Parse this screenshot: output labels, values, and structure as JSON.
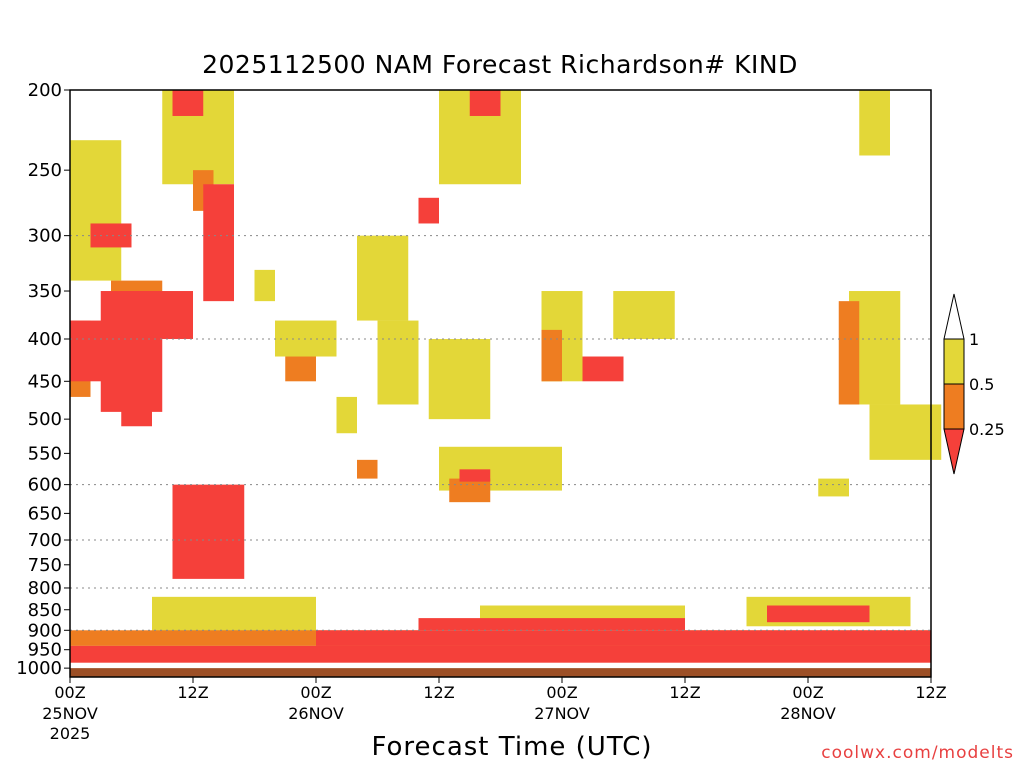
{
  "chart_data": {
    "type": "heatmap",
    "title": "2025112500 NAM Forecast Richardson# KIND",
    "xlabel": "Forecast Time (UTC)",
    "ylabel": "",
    "credit": "coolwx.com/modelts",
    "y_axis": {
      "scale": "pressure",
      "reversed": true,
      "ylim": [
        1025,
        200
      ],
      "ticks": [
        200,
        250,
        300,
        350,
        400,
        450,
        500,
        550,
        600,
        650,
        700,
        750,
        800,
        850,
        900,
        950,
        1000
      ],
      "grid_lines": [
        300,
        400,
        600,
        700,
        800,
        900
      ]
    },
    "x_axis": {
      "xlim_hours": [
        0,
        84
      ],
      "ticks": [
        {
          "hour": 0,
          "label": "00Z",
          "date": "25NOV",
          "year": "2025"
        },
        {
          "hour": 12,
          "label": "12Z",
          "date": "",
          "year": ""
        },
        {
          "hour": 24,
          "label": "00Z",
          "date": "26NOV",
          "year": ""
        },
        {
          "hour": 36,
          "label": "12Z",
          "date": "",
          "year": ""
        },
        {
          "hour": 48,
          "label": "00Z",
          "date": "27NOV",
          "year": ""
        },
        {
          "hour": 60,
          "label": "12Z",
          "date": "",
          "year": ""
        },
        {
          "hour": 72,
          "label": "00Z",
          "date": "28NOV",
          "year": ""
        },
        {
          "hour": 84,
          "label": "12Z",
          "date": "",
          "year": ""
        }
      ]
    },
    "legend": {
      "placement": "right",
      "levels": [
        {
          "label": "1",
          "color": "#ffffff"
        },
        {
          "label": "0.5",
          "color": "#e3d738"
        },
        {
          "label": "0.25",
          "color": "#ee7d21"
        },
        {
          "label": "",
          "color": "#f5403a"
        }
      ]
    },
    "colors": {
      "lt_025": "#f5403a",
      "025_05": "#ee7d21",
      "05_1": "#e3d738",
      "ground": "#9c4f26"
    },
    "surface_pressure_hpa": 1000,
    "regions": [
      {
        "category": "05_1",
        "t": [
          0,
          5
        ],
        "p": [
          230,
          340
        ]
      },
      {
        "category": "05_1",
        "t": [
          9,
          16
        ],
        "p": [
          200,
          260
        ]
      },
      {
        "category": "05_1",
        "t": [
          18,
          20
        ],
        "p": [
          330,
          360
        ]
      },
      {
        "category": "05_1",
        "t": [
          20,
          26
        ],
        "p": [
          380,
          420
        ]
      },
      {
        "category": "05_1",
        "t": [
          26,
          28
        ],
        "p": [
          470,
          520
        ]
      },
      {
        "category": "05_1",
        "t": [
          28,
          33
        ],
        "p": [
          300,
          380
        ]
      },
      {
        "category": "05_1",
        "t": [
          30,
          34
        ],
        "p": [
          380,
          480
        ]
      },
      {
        "category": "05_1",
        "t": [
          36,
          44
        ],
        "p": [
          200,
          260
        ]
      },
      {
        "category": "05_1",
        "t": [
          35,
          41
        ],
        "p": [
          400,
          500
        ]
      },
      {
        "category": "05_1",
        "t": [
          36,
          48
        ],
        "p": [
          540,
          610
        ]
      },
      {
        "category": "05_1",
        "t": [
          46,
          50
        ],
        "p": [
          350,
          450
        ]
      },
      {
        "category": "05_1",
        "t": [
          53,
          59
        ],
        "p": [
          350,
          400
        ]
      },
      {
        "category": "05_1",
        "t": [
          77,
          80
        ],
        "p": [
          200,
          240
        ]
      },
      {
        "category": "05_1",
        "t": [
          76,
          81
        ],
        "p": [
          350,
          480
        ]
      },
      {
        "category": "05_1",
        "t": [
          78,
          85
        ],
        "p": [
          480,
          560
        ]
      },
      {
        "category": "05_1",
        "t": [
          73,
          76
        ],
        "p": [
          590,
          620
        ]
      },
      {
        "category": "05_1",
        "t": [
          8,
          24
        ],
        "p": [
          820,
          920
        ]
      },
      {
        "category": "05_1",
        "t": [
          40,
          60
        ],
        "p": [
          840,
          880
        ]
      },
      {
        "category": "05_1",
        "t": [
          66,
          82
        ],
        "p": [
          820,
          890
        ]
      },
      {
        "category": "025_05",
        "t": [
          0,
          2
        ],
        "p": [
          380,
          470
        ]
      },
      {
        "category": "025_05",
        "t": [
          4,
          9
        ],
        "p": [
          340,
          380
        ]
      },
      {
        "category": "025_05",
        "t": [
          12,
          14
        ],
        "p": [
          250,
          280
        ]
      },
      {
        "category": "025_05",
        "t": [
          21,
          24
        ],
        "p": [
          420,
          450
        ]
      },
      {
        "category": "025_05",
        "t": [
          28,
          30
        ],
        "p": [
          560,
          590
        ]
      },
      {
        "category": "025_05",
        "t": [
          37,
          41
        ],
        "p": [
          590,
          630
        ]
      },
      {
        "category": "025_05",
        "t": [
          46,
          48
        ],
        "p": [
          390,
          450
        ]
      },
      {
        "category": "025_05",
        "t": [
          75,
          77
        ],
        "p": [
          360,
          480
        ]
      },
      {
        "category": "025_05",
        "t": [
          0,
          84
        ],
        "p": [
          900,
          940
        ]
      },
      {
        "category": "lt_025",
        "t": [
          0,
          4
        ],
        "p": [
          380,
          450
        ]
      },
      {
        "category": "lt_025",
        "t": [
          3,
          9
        ],
        "p": [
          350,
          490
        ]
      },
      {
        "category": "lt_025",
        "t": [
          5,
          12
        ],
        "p": [
          350,
          400
        ]
      },
      {
        "category": "lt_025",
        "t": [
          2,
          6
        ],
        "p": [
          290,
          310
        ]
      },
      {
        "category": "lt_025",
        "t": [
          13,
          16
        ],
        "p": [
          260,
          360
        ]
      },
      {
        "category": "lt_025",
        "t": [
          10,
          13
        ],
        "p": [
          200,
          215
        ]
      },
      {
        "category": "lt_025",
        "t": [
          5,
          8
        ],
        "p": [
          480,
          510
        ]
      },
      {
        "category": "lt_025",
        "t": [
          34,
          36
        ],
        "p": [
          270,
          290
        ]
      },
      {
        "category": "lt_025",
        "t": [
          39,
          42
        ],
        "p": [
          200,
          215
        ]
      },
      {
        "category": "lt_025",
        "t": [
          50,
          54
        ],
        "p": [
          420,
          450
        ]
      },
      {
        "category": "lt_025",
        "t": [
          38,
          41
        ],
        "p": [
          575,
          595
        ]
      },
      {
        "category": "lt_025",
        "t": [
          10,
          17
        ],
        "p": [
          600,
          780
        ]
      },
      {
        "category": "lt_025",
        "t": [
          0,
          84
        ],
        "p": [
          940,
          985
        ]
      },
      {
        "category": "lt_025",
        "t": [
          24,
          84
        ],
        "p": [
          900,
          940
        ]
      },
      {
        "category": "lt_025",
        "t": [
          34,
          60
        ],
        "p": [
          870,
          900
        ]
      },
      {
        "category": "lt_025",
        "t": [
          68,
          78
        ],
        "p": [
          840,
          880
        ]
      }
    ]
  }
}
